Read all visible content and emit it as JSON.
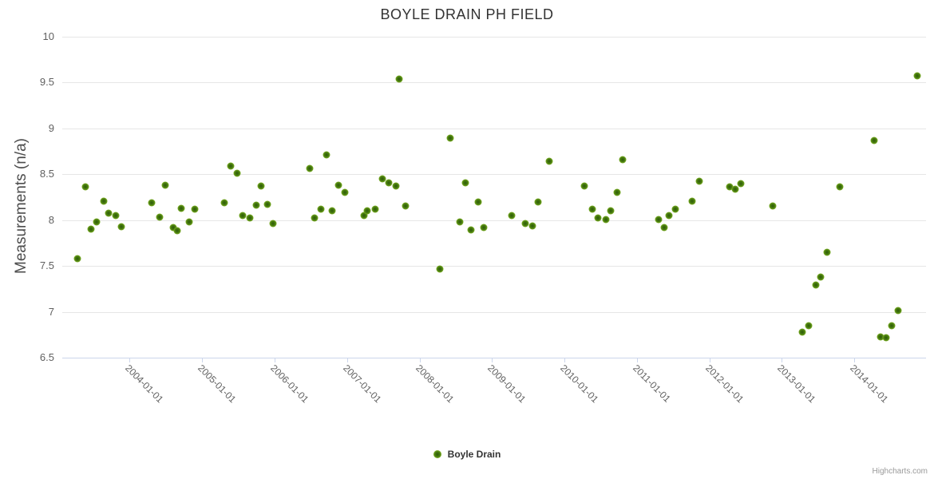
{
  "title": "BOYLE DRAIN PH FIELD",
  "legend": {
    "label": "Boyle Drain"
  },
  "credit": "Highcharts.com",
  "colors": {
    "marker_center": "#2d5c07",
    "marker_mid": "#477a10",
    "marker_edge": "#8abd28",
    "grid": "#e6e6e6",
    "axis_line": "#ccd6eb",
    "label_text": "#606060",
    "title_text": "#333333"
  },
  "y_axis": {
    "title": "Measurements (n/a)",
    "labels": [
      "10",
      "9.5",
      "9",
      "8.5",
      "8",
      "7.5",
      "7",
      "6.5"
    ]
  },
  "x_axis": {
    "labels": [
      "2004-01-01",
      "2005-01-01",
      "2006-01-01",
      "2007-01-01",
      "2008-01-01",
      "2009-01-01",
      "2010-01-01",
      "2011-01-01",
      "2012-01-01",
      "2013-01-01",
      "2014-01-01"
    ]
  },
  "chart_data": {
    "type": "scatter",
    "title": "BOYLE DRAIN PH FIELD",
    "xlabel": "",
    "ylabel": "Measurements (n/a)",
    "ylim": [
      6.5,
      10
    ],
    "xlim_decimal_years": [
      2003.07,
      2014.99
    ],
    "grid": true,
    "legend_position": "bottom-center",
    "series": [
      {
        "name": "Boyle Drain",
        "marker_color": "#5c9413",
        "data": [
          [
            "2003-04-11",
            7.58
          ],
          [
            "2003-05-21",
            8.36
          ],
          [
            "2003-06-19",
            7.9
          ],
          [
            "2003-07-18",
            7.98
          ],
          [
            "2003-08-23",
            8.21
          ],
          [
            "2003-09-16",
            8.08
          ],
          [
            "2003-10-21",
            8.05
          ],
          [
            "2003-11-20",
            7.93
          ],
          [
            "2004-04-21",
            8.19
          ],
          [
            "2004-06-02",
            8.03
          ],
          [
            "2004-06-28",
            8.38
          ],
          [
            "2004-08-07",
            7.92
          ],
          [
            "2004-08-27",
            7.88
          ],
          [
            "2004-09-19",
            8.13
          ],
          [
            "2004-10-28",
            7.98
          ],
          [
            "2004-11-23",
            8.12
          ],
          [
            "2005-04-21",
            8.19
          ],
          [
            "2005-05-23",
            8.59
          ],
          [
            "2005-06-25",
            8.51
          ],
          [
            "2005-07-24",
            8.05
          ],
          [
            "2005-08-27",
            8.02
          ],
          [
            "2005-10-01",
            8.16
          ],
          [
            "2005-10-24",
            8.37
          ],
          [
            "2005-11-27",
            8.17
          ],
          [
            "2005-12-22",
            7.96
          ],
          [
            "2006-06-25",
            8.56
          ],
          [
            "2006-07-18",
            8.02
          ],
          [
            "2006-08-23",
            8.12
          ],
          [
            "2006-09-19",
            8.71
          ],
          [
            "2006-10-18",
            8.1
          ],
          [
            "2006-11-20",
            8.38
          ],
          [
            "2006-12-19",
            8.3
          ],
          [
            "2007-03-26",
            8.05
          ],
          [
            "2007-04-11",
            8.1
          ],
          [
            "2007-05-23",
            8.12
          ],
          [
            "2007-06-25",
            8.45
          ],
          [
            "2007-07-27",
            8.41
          ],
          [
            "2007-09-02",
            8.37
          ],
          [
            "2007-09-19",
            9.54
          ],
          [
            "2007-10-21",
            8.15
          ],
          [
            "2008-04-11",
            7.47
          ],
          [
            "2008-06-02",
            8.89
          ],
          [
            "2008-07-21",
            7.98
          ],
          [
            "2008-08-20",
            8.41
          ],
          [
            "2008-09-16",
            7.89
          ],
          [
            "2008-10-21",
            8.2
          ],
          [
            "2008-11-20",
            7.92
          ],
          [
            "2009-04-11",
            8.05
          ],
          [
            "2009-06-15",
            7.96
          ],
          [
            "2009-07-21",
            7.94
          ],
          [
            "2009-08-20",
            8.2
          ],
          [
            "2009-10-17",
            8.64
          ],
          [
            "2010-04-11",
            8.37
          ],
          [
            "2010-05-20",
            8.12
          ],
          [
            "2010-06-19",
            8.02
          ],
          [
            "2010-07-27",
            8.01
          ],
          [
            "2010-08-23",
            8.1
          ],
          [
            "2010-09-22",
            8.3
          ],
          [
            "2010-10-21",
            8.66
          ],
          [
            "2011-04-18",
            8.01
          ],
          [
            "2011-05-17",
            7.92
          ],
          [
            "2011-06-12",
            8.05
          ],
          [
            "2011-07-11",
            8.12
          ],
          [
            "2011-10-04",
            8.21
          ],
          [
            "2011-11-10",
            8.42
          ],
          [
            "2012-04-11",
            8.36
          ],
          [
            "2012-05-10",
            8.34
          ],
          [
            "2012-06-09",
            8.4
          ],
          [
            "2012-11-17",
            8.15
          ],
          [
            "2013-04-14",
            6.78
          ],
          [
            "2013-05-13",
            6.85
          ],
          [
            "2013-06-19",
            7.29
          ],
          [
            "2013-07-14",
            7.38
          ],
          [
            "2013-08-17",
            7.65
          ],
          [
            "2013-10-21",
            8.36
          ],
          [
            "2014-04-11",
            8.87
          ],
          [
            "2014-05-13",
            6.73
          ],
          [
            "2014-06-09",
            6.72
          ],
          [
            "2014-07-08",
            6.85
          ],
          [
            "2014-08-10",
            7.01
          ],
          [
            "2014-11-14",
            9.57
          ]
        ]
      }
    ]
  }
}
